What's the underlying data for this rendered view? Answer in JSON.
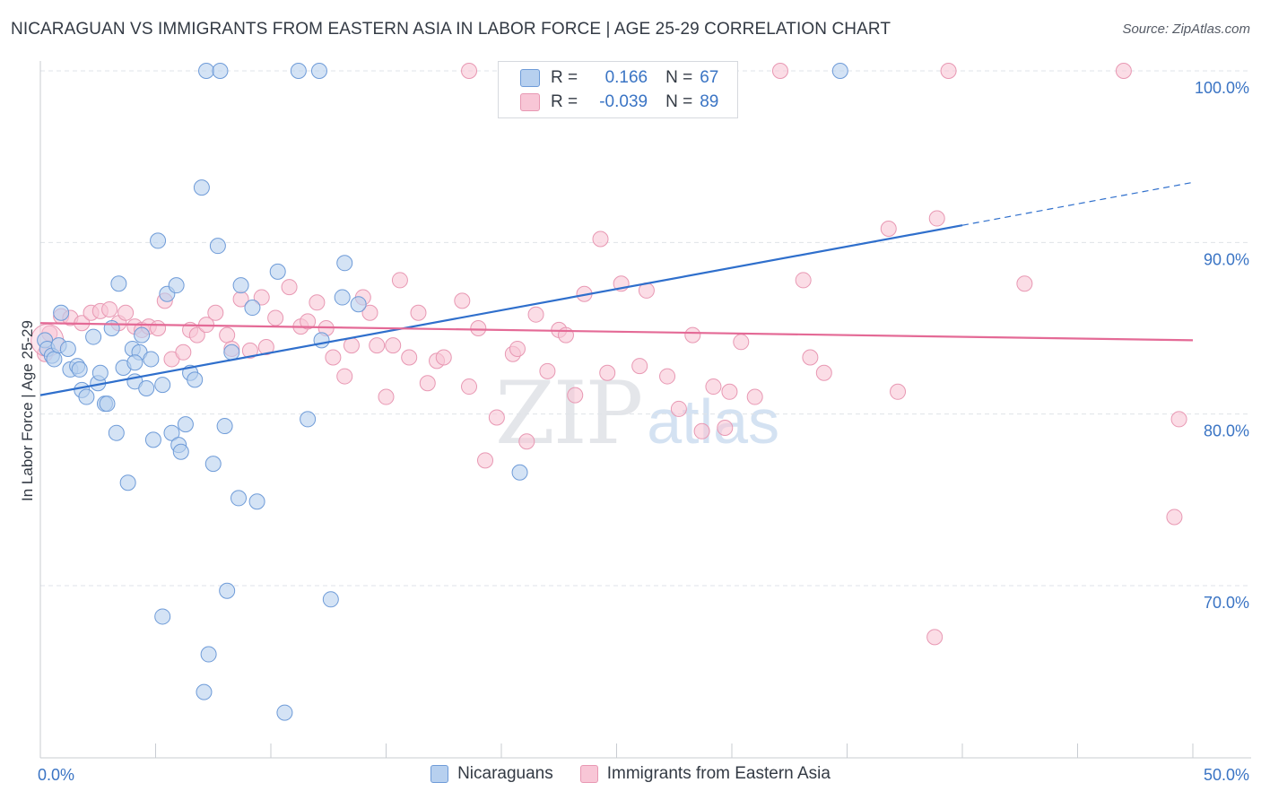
{
  "title": "NICARAGUAN VS IMMIGRANTS FROM EASTERN ASIA IN LABOR FORCE | AGE 25-29 CORRELATION CHART",
  "source": "Source: ZipAtlas.com",
  "watermark": {
    "zip": "ZIP",
    "atlas": "atlas"
  },
  "colors": {
    "blue_fill": "#b7d0ef",
    "blue_stroke": "#6e9bd8",
    "blue_line": "#2f6fcc",
    "pink_fill": "#f8c6d6",
    "pink_stroke": "#e898b3",
    "pink_line": "#e46a96",
    "tick_text": "#3a74c4",
    "grid": "#dfe3e8"
  },
  "legend": {
    "row1": {
      "r_label": "R =",
      "r_value": "0.166",
      "n_label": "N =",
      "n_value": "67"
    },
    "row2": {
      "r_label": "R =",
      "r_value": "-0.039",
      "n_label": "N =",
      "n_value": "89"
    }
  },
  "bottom_legend": {
    "series1": "Nicaraguans",
    "series2": "Immigrants from Eastern Asia"
  },
  "chart_data": {
    "type": "scatter",
    "title": "NICARAGUAN VS IMMIGRANTS FROM EASTERN ASIA IN LABOR FORCE | AGE 25-29 CORRELATION CHART",
    "xlabel": "",
    "ylabel": "In Labor Force | Age 25-29",
    "xlim": [
      0,
      50
    ],
    "ylim": [
      60.5,
      102
    ],
    "x_tick_labels": [
      "0.0%",
      "50.0%"
    ],
    "y_ticks": [
      70,
      80,
      90,
      100
    ],
    "y_tick_labels": [
      "70.0%",
      "80.0%",
      "90.0%",
      "100.0%"
    ],
    "grid": true,
    "series": [
      {
        "name": "Nicaraguans",
        "R": 0.166,
        "N": 67,
        "trend": {
          "x0": 0,
          "y0": 81.1,
          "x1": 40,
          "y1": 91.0,
          "dashed_to_x": 50,
          "dashed_to_y": 93.5
        },
        "points": [
          [
            0.2,
            84.3
          ],
          [
            0.3,
            83.8
          ],
          [
            0.5,
            83.4
          ],
          [
            0.6,
            83.2
          ],
          [
            0.8,
            84.0
          ],
          [
            0.9,
            85.9
          ],
          [
            1.2,
            83.8
          ],
          [
            1.3,
            82.6
          ],
          [
            1.6,
            82.8
          ],
          [
            1.7,
            82.6
          ],
          [
            1.8,
            81.4
          ],
          [
            2.0,
            81.0
          ],
          [
            2.3,
            84.5
          ],
          [
            2.5,
            81.8
          ],
          [
            2.6,
            82.4
          ],
          [
            2.8,
            80.6
          ],
          [
            2.9,
            80.6
          ],
          [
            3.1,
            85.0
          ],
          [
            3.3,
            78.9
          ],
          [
            3.4,
            87.6
          ],
          [
            3.6,
            82.7
          ],
          [
            3.8,
            76.0
          ],
          [
            4.0,
            83.8
          ],
          [
            4.1,
            81.9
          ],
          [
            4.3,
            83.6
          ],
          [
            4.4,
            84.6
          ],
          [
            4.6,
            81.5
          ],
          [
            4.8,
            83.2
          ],
          [
            4.9,
            78.5
          ],
          [
            5.1,
            90.1
          ],
          [
            5.3,
            81.7
          ],
          [
            5.5,
            87.0
          ],
          [
            5.7,
            78.9
          ],
          [
            5.9,
            87.5
          ],
          [
            6.0,
            78.2
          ],
          [
            6.1,
            77.8
          ],
          [
            6.3,
            79.4
          ],
          [
            6.5,
            82.4
          ],
          [
            6.7,
            82.0
          ],
          [
            7.0,
            93.2
          ],
          [
            7.2,
            100.0
          ],
          [
            7.5,
            77.1
          ],
          [
            7.7,
            89.8
          ],
          [
            7.8,
            100.0
          ],
          [
            8.0,
            79.3
          ],
          [
            8.3,
            83.6
          ],
          [
            8.6,
            75.1
          ],
          [
            8.7,
            87.5
          ],
          [
            9.2,
            86.2
          ],
          [
            9.4,
            74.9
          ],
          [
            10.3,
            88.3
          ],
          [
            11.2,
            100.0
          ],
          [
            11.6,
            79.7
          ],
          [
            12.1,
            100.0
          ],
          [
            12.2,
            84.3
          ],
          [
            13.1,
            86.8
          ],
          [
            13.2,
            88.8
          ],
          [
            13.8,
            86.4
          ],
          [
            20.8,
            76.6
          ],
          [
            34.7,
            100.0
          ],
          [
            8.1,
            69.7
          ],
          [
            12.6,
            69.2
          ],
          [
            5.3,
            68.2
          ],
          [
            7.3,
            66.0
          ],
          [
            7.1,
            63.8
          ],
          [
            10.6,
            62.6
          ],
          [
            4.1,
            83.0
          ]
        ]
      },
      {
        "name": "Immigrants from Eastern Asia",
        "R": -0.039,
        "N": 89,
        "trend": {
          "x0": 0,
          "y0": 85.3,
          "x1": 50,
          "y1": 84.3
        },
        "points": [
          [
            0.2,
            83.5
          ],
          [
            0.4,
            84.7
          ],
          [
            0.9,
            85.7
          ],
          [
            1.3,
            85.6
          ],
          [
            1.8,
            85.3
          ],
          [
            2.2,
            85.9
          ],
          [
            2.6,
            86.0
          ],
          [
            3.0,
            86.1
          ],
          [
            3.4,
            85.3
          ],
          [
            3.7,
            85.9
          ],
          [
            4.1,
            85.1
          ],
          [
            4.4,
            84.9
          ],
          [
            4.7,
            85.1
          ],
          [
            5.1,
            85.0
          ],
          [
            5.4,
            86.6
          ],
          [
            5.7,
            83.2
          ],
          [
            6.2,
            83.6
          ],
          [
            6.5,
            84.9
          ],
          [
            6.8,
            84.6
          ],
          [
            7.2,
            85.2
          ],
          [
            7.6,
            85.9
          ],
          [
            8.1,
            84.6
          ],
          [
            8.3,
            83.8
          ],
          [
            8.7,
            86.7
          ],
          [
            9.1,
            83.7
          ],
          [
            9.6,
            86.8
          ],
          [
            9.8,
            83.9
          ],
          [
            10.2,
            85.6
          ],
          [
            10.8,
            87.4
          ],
          [
            11.3,
            85.1
          ],
          [
            11.6,
            85.4
          ],
          [
            12.0,
            86.5
          ],
          [
            12.4,
            85.0
          ],
          [
            12.7,
            83.3
          ],
          [
            13.2,
            82.2
          ],
          [
            13.5,
            84.0
          ],
          [
            14.0,
            86.8
          ],
          [
            14.3,
            85.9
          ],
          [
            14.6,
            84.0
          ],
          [
            15.0,
            81.0
          ],
          [
            15.3,
            84.0
          ],
          [
            15.6,
            87.8
          ],
          [
            16.0,
            83.3
          ],
          [
            16.4,
            85.9
          ],
          [
            16.8,
            81.8
          ],
          [
            17.2,
            83.1
          ],
          [
            17.5,
            83.3
          ],
          [
            18.3,
            86.6
          ],
          [
            18.6,
            81.6
          ],
          [
            19.0,
            85.0
          ],
          [
            19.3,
            77.3
          ],
          [
            19.8,
            79.8
          ],
          [
            20.5,
            83.5
          ],
          [
            20.7,
            83.8
          ],
          [
            21.1,
            78.4
          ],
          [
            21.5,
            85.8
          ],
          [
            22.0,
            82.5
          ],
          [
            22.5,
            84.9
          ],
          [
            22.8,
            84.6
          ],
          [
            23.2,
            81.1
          ],
          [
            23.6,
            87.0
          ],
          [
            24.3,
            90.2
          ],
          [
            24.6,
            82.4
          ],
          [
            25.2,
            87.6
          ],
          [
            26.0,
            82.8
          ],
          [
            26.3,
            87.2
          ],
          [
            27.2,
            82.2
          ],
          [
            27.7,
            80.3
          ],
          [
            28.3,
            84.6
          ],
          [
            28.7,
            79.0
          ],
          [
            29.2,
            81.6
          ],
          [
            29.7,
            79.2
          ],
          [
            29.9,
            81.3
          ],
          [
            30.4,
            84.2
          ],
          [
            31.0,
            81.0
          ],
          [
            33.1,
            87.8
          ],
          [
            33.4,
            83.3
          ],
          [
            34.0,
            82.4
          ],
          [
            36.8,
            90.8
          ],
          [
            37.2,
            81.3
          ],
          [
            38.9,
            91.4
          ],
          [
            39.4,
            100.0
          ],
          [
            42.7,
            87.6
          ],
          [
            47.0,
            100.0
          ],
          [
            49.4,
            79.7
          ],
          [
            49.2,
            74.0
          ],
          [
            38.8,
            67.0
          ],
          [
            18.6,
            100.0
          ],
          [
            32.1,
            100.0
          ]
        ]
      }
    ]
  }
}
